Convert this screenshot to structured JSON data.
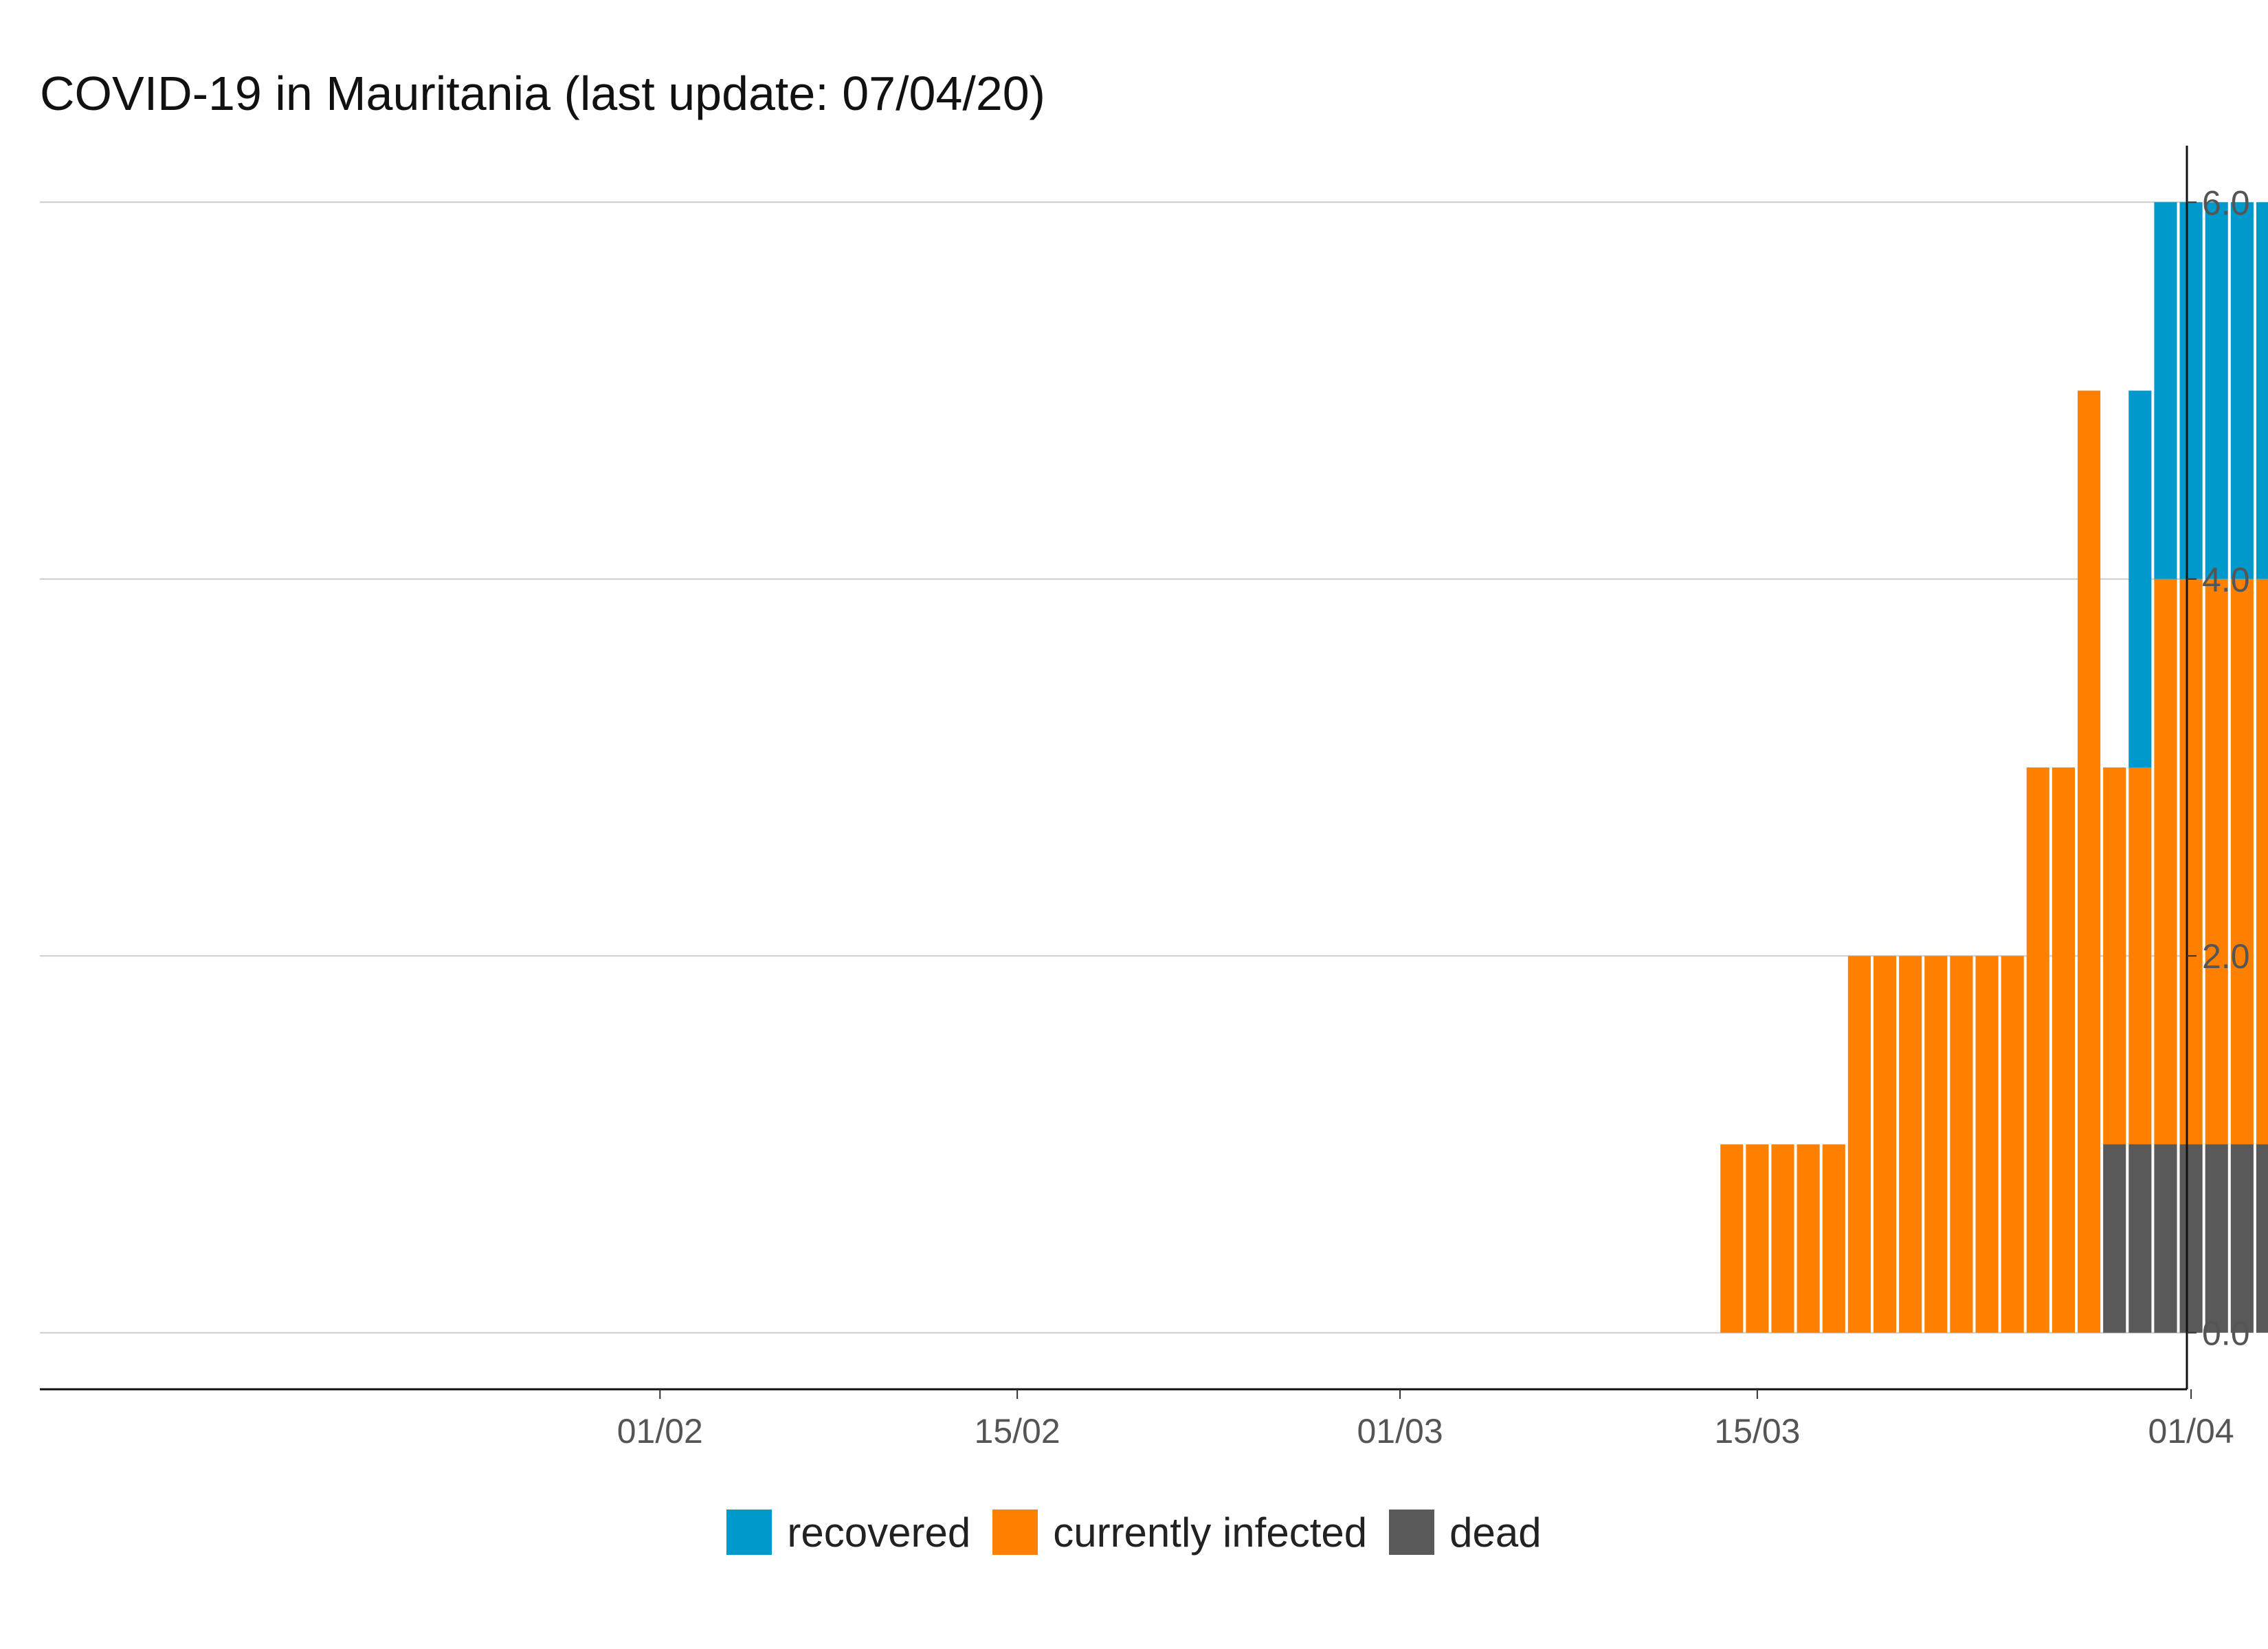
{
  "chart_data": {
    "type": "bar",
    "stacked": true,
    "title": "COVID-19 in Mauritania (last update: 07/04/20)",
    "xlabel": "",
    "ylabel": "",
    "x_range": [
      "2020-01-22",
      "2020-04-07"
    ],
    "x_ticks": [
      {
        "date": "2020-02-01",
        "label": "01/02"
      },
      {
        "date": "2020-02-15",
        "label": "15/02"
      },
      {
        "date": "2020-03-01",
        "label": "01/03"
      },
      {
        "date": "2020-03-15",
        "label": "15/03"
      },
      {
        "date": "2020-04-01",
        "label": "01/04"
      }
    ],
    "ylim": [
      -0.3,
      6.3
    ],
    "y_ticks": [
      "0.0",
      "2.0",
      "4.0",
      "6.0"
    ],
    "y_axis_position": "right",
    "grid": "horizontal",
    "legend_position": "bottom",
    "dates": [
      "2020-03-14",
      "2020-03-15",
      "2020-03-16",
      "2020-03-17",
      "2020-03-18",
      "2020-03-19",
      "2020-03-20",
      "2020-03-21",
      "2020-03-22",
      "2020-03-23",
      "2020-03-24",
      "2020-03-25",
      "2020-03-26",
      "2020-03-27",
      "2020-03-28",
      "2020-03-29",
      "2020-03-30",
      "2020-03-31",
      "2020-04-01",
      "2020-04-02",
      "2020-04-03",
      "2020-04-04",
      "2020-04-05",
      "2020-04-06",
      "2020-04-07"
    ],
    "series": [
      {
        "name": "dead",
        "color": "#595959",
        "values": [
          0,
          0,
          0,
          0,
          0,
          0,
          0,
          0,
          0,
          0,
          0,
          0,
          0,
          0,
          0,
          1,
          1,
          1,
          1,
          1,
          1,
          1,
          1,
          1,
          1
        ]
      },
      {
        "name": "currently infected",
        "color": "#ff8000",
        "values": [
          1,
          1,
          1,
          1,
          1,
          2,
          2,
          2,
          2,
          2,
          2,
          2,
          3,
          3,
          5,
          2,
          2,
          3,
          3,
          3,
          3,
          3,
          3,
          3,
          3
        ]
      },
      {
        "name": "recovered",
        "color": "#0099cc",
        "values": [
          0,
          0,
          0,
          0,
          0,
          0,
          0,
          0,
          0,
          0,
          0,
          0,
          0,
          0,
          0,
          0,
          2,
          2,
          2,
          2,
          2,
          2,
          2,
          2,
          2
        ]
      }
    ],
    "legend_order": [
      "recovered",
      "currently infected",
      "dead"
    ]
  }
}
